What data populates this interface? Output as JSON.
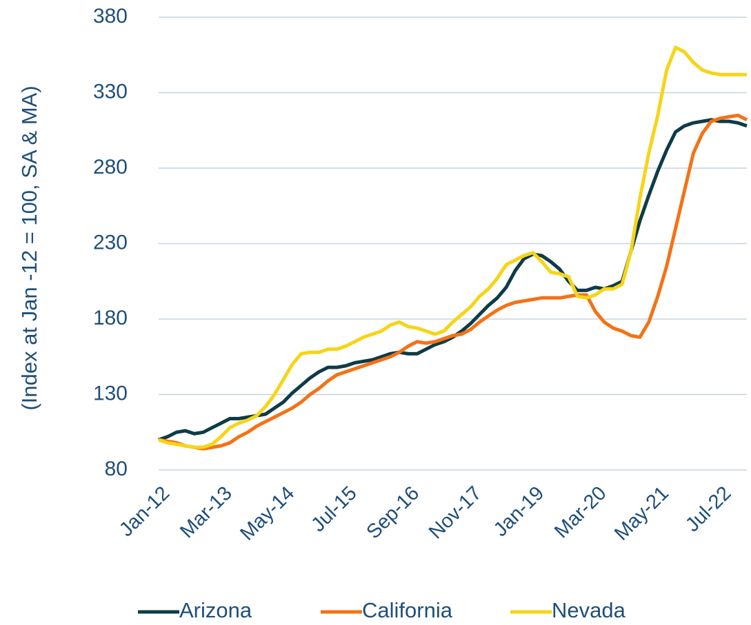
{
  "chart_data": {
    "type": "line",
    "y_label": "(Index at Jan -12 = 100, SA & MA)",
    "categories": [
      "Jan-12",
      null,
      null,
      null,
      null,
      null,
      null,
      "Mar-13",
      null,
      null,
      null,
      null,
      null,
      null,
      "May-14",
      null,
      null,
      null,
      null,
      null,
      null,
      "Jul-15",
      null,
      null,
      null,
      null,
      null,
      null,
      "Sep-16",
      null,
      null,
      null,
      null,
      null,
      null,
      "Nov-17",
      null,
      null,
      null,
      null,
      null,
      null,
      "Jan-19",
      null,
      null,
      null,
      null,
      null,
      null,
      "Mar-20",
      null,
      null,
      null,
      null,
      null,
      null,
      "May-21",
      null,
      null,
      null,
      null,
      null,
      null,
      "Jul-22",
      null,
      null,
      null
    ],
    "series": [
      {
        "name": "Arizona",
        "color": "#0e3b47",
        "values": [
          100,
          102,
          105,
          106,
          104,
          105,
          108,
          111,
          114,
          114,
          115,
          116,
          117,
          121,
          125,
          131,
          136,
          141,
          145,
          148,
          148,
          149,
          151,
          152,
          153,
          155,
          157,
          158,
          157,
          157,
          160,
          163,
          165,
          168,
          172,
          177,
          183,
          189,
          194,
          201,
          212,
          220,
          223,
          222,
          218,
          213,
          205,
          199,
          199,
          201,
          200,
          202,
          205,
          225,
          245,
          262,
          278,
          292,
          304,
          308,
          310,
          311,
          312,
          311,
          311,
          310,
          308
        ]
      },
      {
        "name": "California",
        "color": "#f47216",
        "values": [
          100,
          99,
          98,
          96,
          95,
          94,
          95,
          96,
          98,
          102,
          105,
          109,
          112,
          115,
          118,
          121,
          125,
          130,
          134,
          139,
          143,
          145,
          147,
          149,
          151,
          153,
          155,
          158,
          162,
          165,
          164,
          165,
          167,
          169,
          170,
          173,
          178,
          182,
          186,
          189,
          191,
          192,
          193,
          194,
          194,
          194,
          195,
          196,
          196,
          185,
          178,
          174,
          172,
          169,
          168,
          178,
          195,
          215,
          240,
          265,
          290,
          303,
          311,
          313,
          314,
          315,
          312
        ]
      },
      {
        "name": "Nevada",
        "color": "#f7d417",
        "values": [
          100,
          98,
          97,
          96,
          95,
          95,
          97,
          102,
          108,
          111,
          113,
          116,
          122,
          130,
          140,
          150,
          157,
          158,
          158,
          160,
          160,
          162,
          165,
          168,
          170,
          172,
          176,
          178,
          175,
          174,
          172,
          170,
          172,
          178,
          183,
          188,
          195,
          200,
          207,
          216,
          219,
          222,
          224,
          218,
          211,
          210,
          208,
          195,
          194,
          196,
          200,
          200,
          203,
          225,
          260,
          290,
          315,
          345,
          360,
          357,
          350,
          345,
          343,
          342,
          342,
          342,
          342
        ]
      }
    ],
    "ylim": [
      80,
      380
    ],
    "yticks": [
      80,
      130,
      180,
      230,
      280,
      330,
      380
    ],
    "grid": true,
    "legend": "bottom"
  }
}
